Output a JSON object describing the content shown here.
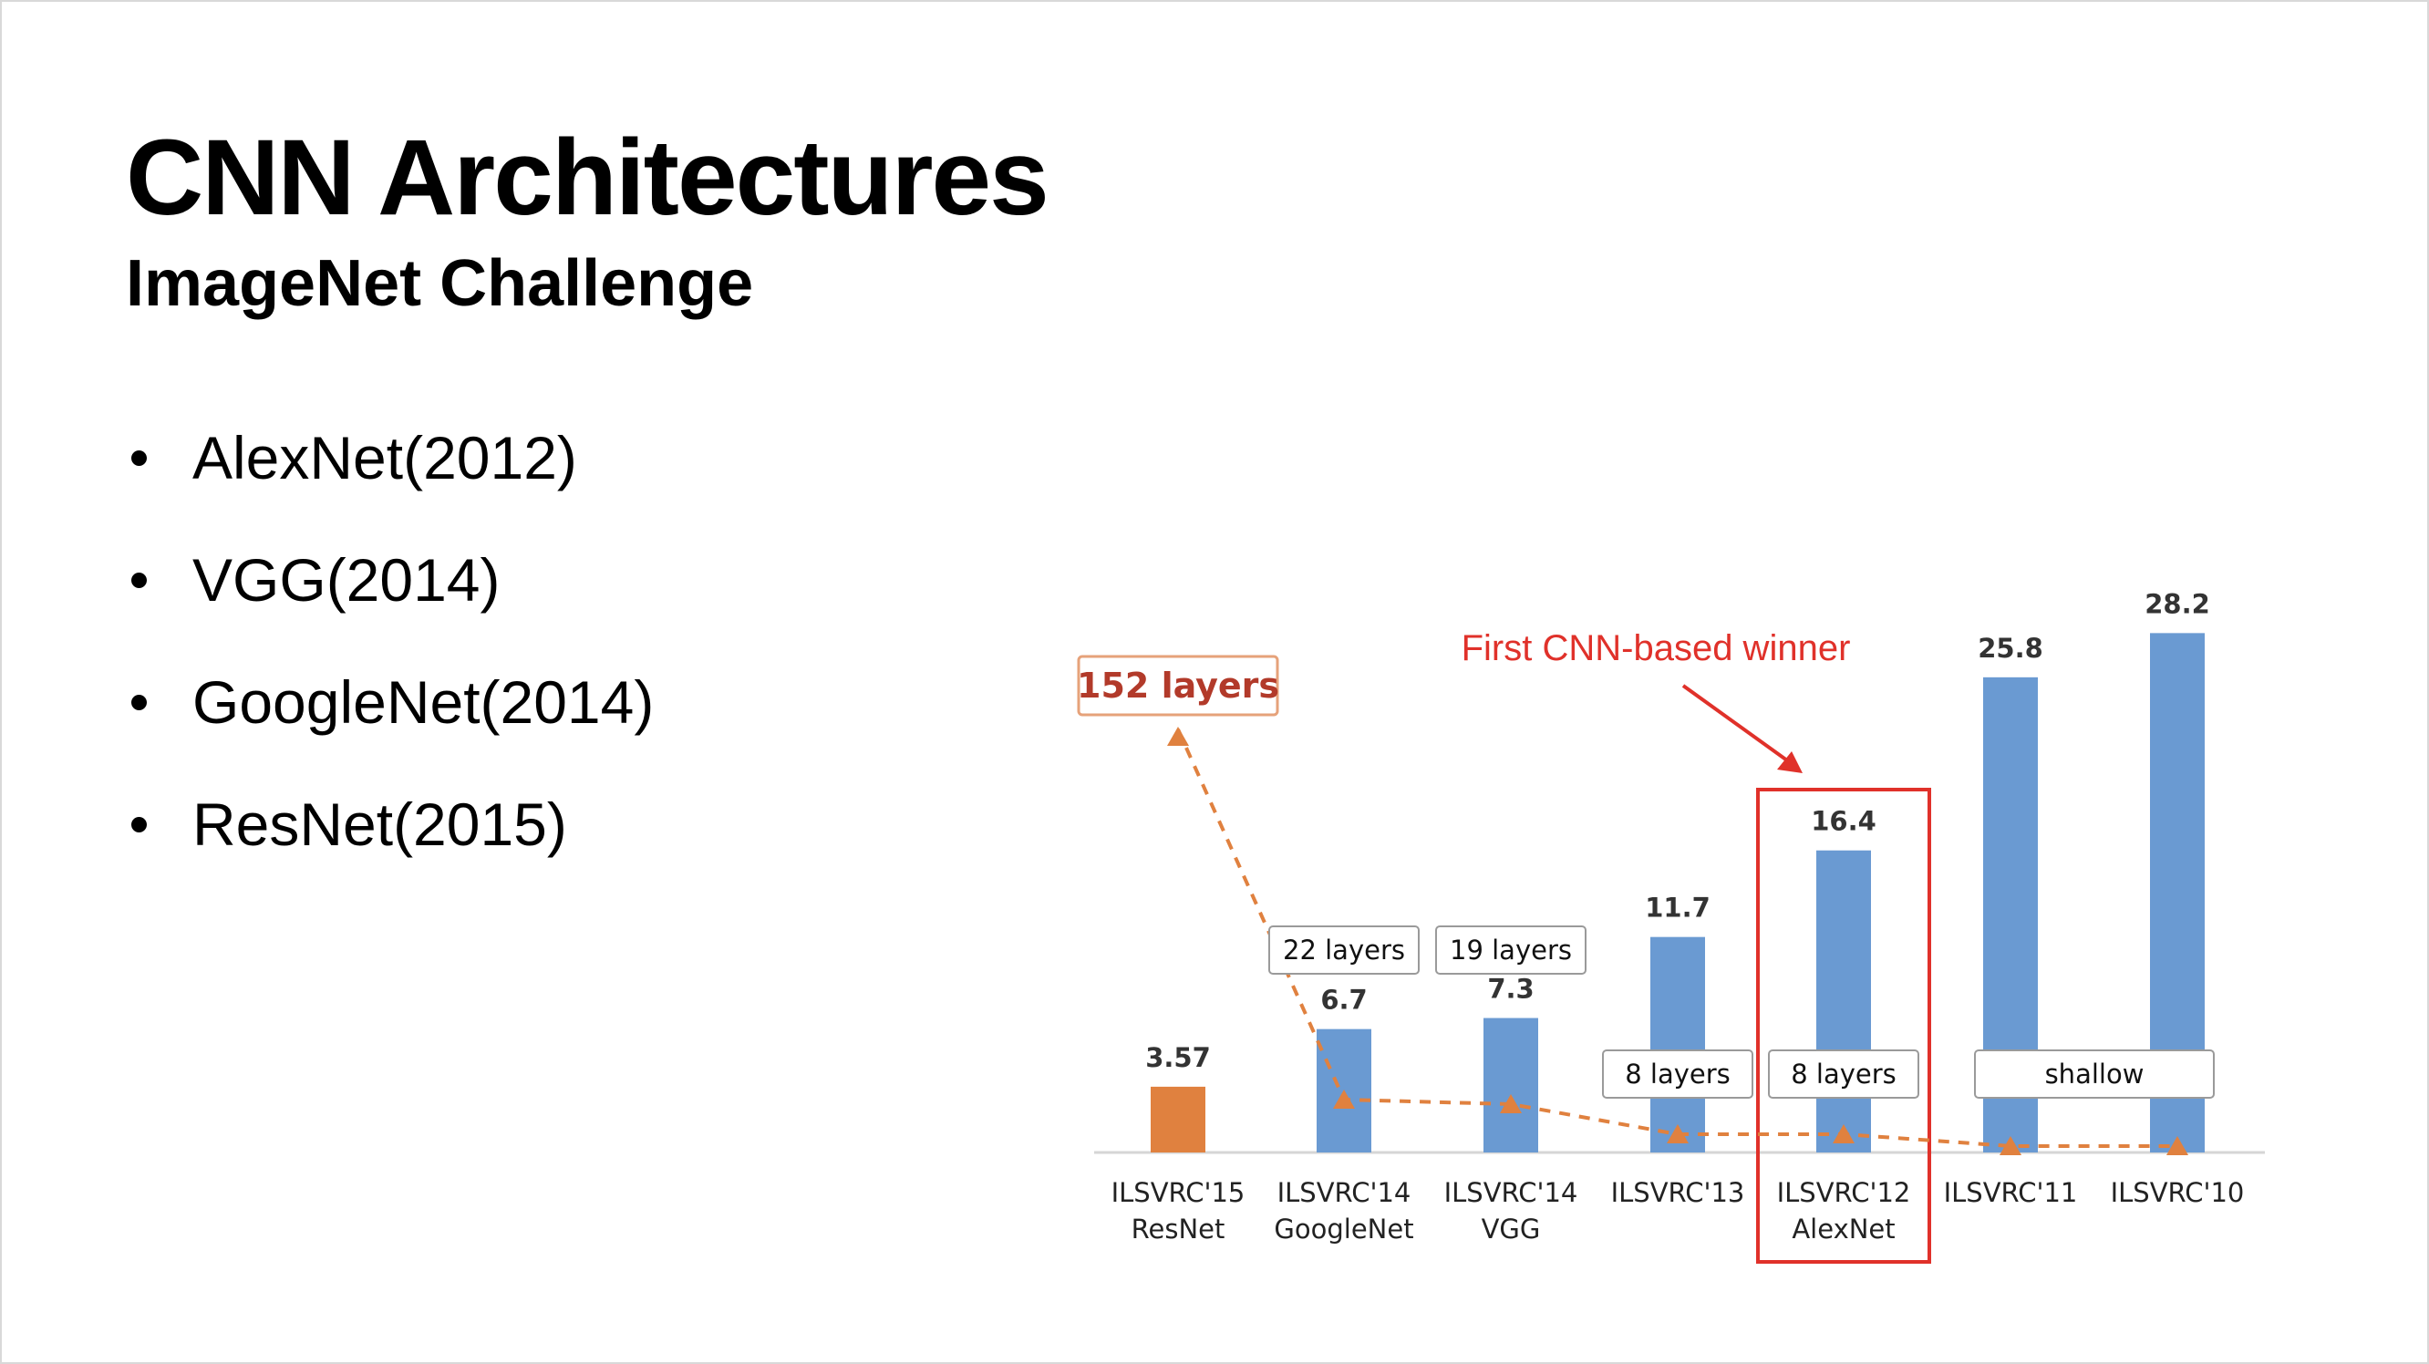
{
  "slide": {
    "title": "CNN Architectures",
    "subtitle": "ImageNet Challenge",
    "bullets": [
      "AlexNet(2012)",
      "VGG(2014)",
      "GoogleNet(2014)",
      "ResNet(2015)"
    ]
  },
  "chart_data": {
    "type": "bar",
    "categories": [
      [
        "ILSVRC'15",
        "ResNet"
      ],
      [
        "ILSVRC'14",
        "GoogleNet"
      ],
      [
        "ILSVRC'14",
        "VGG"
      ],
      [
        "ILSVRC'13"
      ],
      [
        "ILSVRC'12",
        "AlexNet"
      ],
      [
        "ILSVRC'11"
      ],
      [
        "ILSVRC'10"
      ]
    ],
    "values": [
      3.57,
      6.7,
      7.3,
      11.7,
      16.4,
      25.8,
      28.2
    ],
    "value_labels": [
      "3.57",
      "6.7",
      "7.3",
      "11.7",
      "16.4",
      "25.8",
      "28.2"
    ],
    "bar_colors": [
      "#e0813f",
      "#6a9ad2",
      "#6a9ad2",
      "#6a9ad2",
      "#6a9ad2",
      "#6a9ad2",
      "#6a9ad2"
    ],
    "ylim": [
      0,
      30
    ],
    "layers_line": {
      "color": "#e0813f",
      "style": "dashed with triangle markers",
      "layers": [
        152,
        22,
        19,
        8,
        8,
        8,
        8
      ]
    },
    "layer_labels": [
      {
        "text": "152 layers",
        "category": 0
      },
      {
        "text": "22 layers",
        "category": 1
      },
      {
        "text": "19 layers",
        "category": 2
      },
      {
        "text": "8 layers",
        "category": 3
      },
      {
        "text": "8 layers",
        "category": 4
      },
      {
        "text": "shallow",
        "categories": [
          5,
          6
        ]
      }
    ],
    "annotation": {
      "text": "First CNN-based winner",
      "color": "#e0312a",
      "highlighted_category": 4
    },
    "grid": false,
    "legend": "none"
  }
}
